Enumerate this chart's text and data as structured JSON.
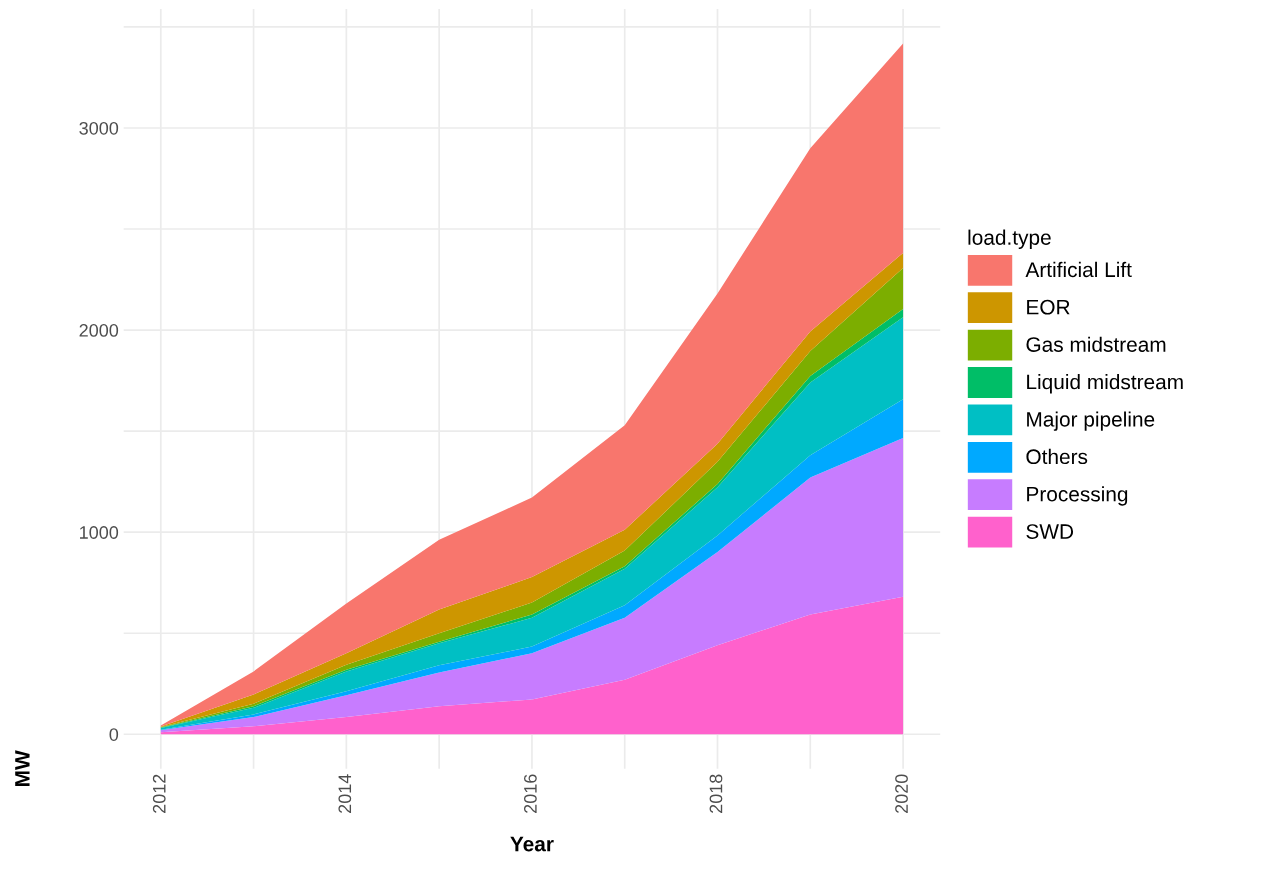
{
  "chart_data": {
    "type": "area",
    "stacked": true,
    "xlabel": "Year",
    "ylabel": "MW",
    "legend_title": "load.type",
    "legend": "right",
    "grid": true,
    "x": [
      2012,
      2013,
      2014,
      2015,
      2016,
      2017,
      2018,
      2019,
      2020
    ],
    "xlim": [
      2011.6,
      2020.4
    ],
    "xticks": [
      2012,
      {
        "value": 2013,
        "label": null
      },
      2014,
      {
        "value": 2015,
        "label": null
      },
      2016,
      {
        "value": 2017,
        "label": null
      },
      2018,
      {
        "value": 2019,
        "label": null
      },
      2020
    ],
    "ylim": [
      -171,
      3589
    ],
    "yticks": [
      0,
      {
        "value": 500,
        "label": null
      },
      1000,
      {
        "value": 1500,
        "label": null
      },
      2000,
      {
        "value": 2500,
        "label": null
      },
      3000,
      {
        "value": 3500,
        "label": null
      }
    ],
    "series": [
      {
        "name": "SWD",
        "color": "#ff61cc",
        "values": [
          10,
          40,
          85,
          139,
          172,
          270,
          441,
          593,
          681
        ]
      },
      {
        "name": "Processing",
        "color": "#c77cff",
        "values": [
          10,
          45,
          108,
          167,
          229,
          306,
          461,
          677,
          785
        ]
      },
      {
        "name": "Others",
        "color": "#00a9ff",
        "values": [
          3,
          13,
          20,
          35,
          33,
          63,
          82,
          111,
          192
        ]
      },
      {
        "name": "Major pipeline",
        "color": "#00bfc4",
        "values": [
          8,
          33,
          98,
          110,
          142,
          180,
          238,
          359,
          406
        ]
      },
      {
        "name": "Liquid midstream",
        "color": "#00be67",
        "values": [
          2,
          8,
          8,
          7,
          17,
          13,
          17,
          33,
          40
        ]
      },
      {
        "name": "Gas midstream",
        "color": "#7cae00",
        "values": [
          3,
          12,
          25,
          42,
          59,
          77,
          109,
          123,
          203
        ]
      },
      {
        "name": "EOR",
        "color": "#cd9600",
        "values": [
          3,
          46,
          57,
          118,
          126,
          103,
          90,
          97,
          75
        ]
      },
      {
        "name": "Artificial Lift",
        "color": "#f8766d",
        "values": [
          5,
          114,
          246,
          345,
          393,
          517,
          743,
          907,
          1036
        ]
      }
    ]
  }
}
